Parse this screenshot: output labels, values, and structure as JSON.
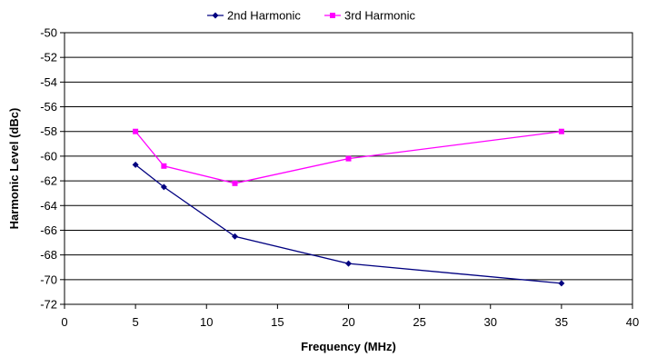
{
  "chart_data": {
    "type": "line",
    "title": "",
    "xlabel": "Frequency (MHz)",
    "ylabel": "Harmonic Level (dBc)",
    "xlim": [
      0,
      40
    ],
    "ylim": [
      -72,
      -50
    ],
    "x_ticks": [
      "0",
      "5",
      "10",
      "15",
      "20",
      "25",
      "30",
      "35",
      "40"
    ],
    "y_ticks": [
      "-50",
      "-52",
      "-54",
      "-56",
      "-58",
      "-60",
      "-62",
      "-64",
      "-66",
      "-68",
      "-70",
      "-72"
    ],
    "grid": "horizontal",
    "legend_position": "top",
    "series": [
      {
        "name": "2nd Harmonic",
        "color": "#000080",
        "marker": "diamond",
        "x": [
          5,
          7,
          12,
          20,
          35
        ],
        "y": [
          -60.7,
          -62.5,
          -66.5,
          -68.7,
          -70.3
        ]
      },
      {
        "name": "3rd Harmonic",
        "color": "#FF00FF",
        "marker": "square",
        "x": [
          5,
          7,
          12,
          20,
          35
        ],
        "y": [
          -58.0,
          -60.8,
          -62.2,
          -60.2,
          -58.0
        ]
      }
    ]
  }
}
